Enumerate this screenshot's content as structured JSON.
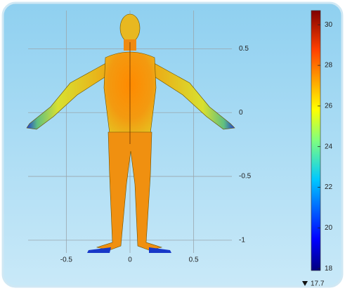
{
  "chart_data": {
    "type": "surface",
    "xlim": [
      -0.8,
      0.8
    ],
    "xticks": [
      -0.5,
      0,
      0.5
    ],
    "ylim": [
      -1.1,
      0.8
    ],
    "yticks": [
      0.5,
      0,
      -0.5,
      -1
    ],
    "grid": true,
    "colorbar": {
      "lim": [
        17.9,
        30.7
      ],
      "ticks": [
        18,
        20,
        22,
        24,
        26,
        28,
        30
      ],
      "min": 17.7
    }
  }
}
